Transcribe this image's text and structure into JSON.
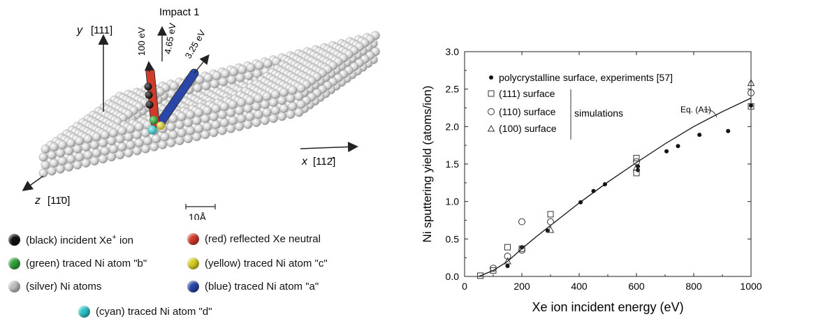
{
  "panel_left": {
    "title": "Impact 1",
    "axis_y_label": "y",
    "axis_y_dir": "[111]",
    "axis_x_label": "x",
    "axis_x_dir": "[112̄]",
    "axis_z_label": "z",
    "axis_z_dir": "[11̄0]",
    "scale_label": "10Å",
    "traj_labels": [
      "100 eV",
      "4.65 eV",
      "3.25 eV"
    ],
    "legend": [
      {
        "color": "#111111",
        "text": "(black) incident Xe",
        "sup": "+",
        "tail": " ion"
      },
      {
        "color": "#d23a2a",
        "text": "(red) reflected Xe neutral"
      },
      {
        "color": "#2fa23a",
        "text": "(green) traced Ni atom \"b\""
      },
      {
        "color": "#d7cf25",
        "text": "(yellow) traced Ni atom \"c\""
      },
      {
        "color": "#bdbdbd",
        "text": "(silver) Ni atoms"
      },
      {
        "color": "#2a46a8",
        "text": "(blue) traced Ni atom \"a\""
      },
      {
        "color": "#2cc3c9",
        "text": "(cyan) traced Ni atom \"d\""
      }
    ]
  },
  "chart_data": {
    "type": "scatter",
    "xlabel": "Xe ion incident energy (eV)",
    "ylabel": "Ni sputtering yield (atoms/ion)",
    "xlim": [
      0,
      1000
    ],
    "ylim": [
      0,
      3.0
    ],
    "xticks": [
      0,
      200,
      400,
      600,
      800,
      1000
    ],
    "yticks": [
      0.0,
      0.5,
      1.0,
      1.5,
      2.0,
      2.5,
      3.0
    ],
    "xtick_labels": [
      "0",
      "200",
      "400",
      "600",
      "800",
      "1000"
    ],
    "ytick_labels": [
      "0.0",
      "0.5",
      "1.0",
      "1.5",
      "2.0",
      "2.5",
      "3.0"
    ],
    "legend_position": "top-left",
    "bracket_label": "simulations",
    "curve_label": "Eq. (A1)",
    "series": [
      {
        "name": "polycrystalline surface, experiments [57]",
        "marker": "filled-circle",
        "x": [
          150,
          200,
          290,
          405,
          450,
          490,
          605,
          605,
          705,
          745,
          820,
          920,
          1000
        ],
        "y": [
          0.14,
          0.39,
          0.61,
          0.99,
          1.14,
          1.23,
          1.42,
          1.47,
          1.67,
          1.74,
          1.89,
          1.94,
          2.28
        ]
      },
      {
        "name": "(111) surface",
        "marker": "open-square",
        "x": [
          55,
          100,
          150,
          200,
          300,
          600,
          600,
          1000
        ],
        "y": [
          0.01,
          0.08,
          0.39,
          0.37,
          0.83,
          1.58,
          1.38,
          2.27
        ]
      },
      {
        "name": "(110) surface",
        "marker": "open-circle",
        "x": [
          100,
          150,
          200,
          200,
          300,
          600,
          1000
        ],
        "y": [
          0.11,
          0.27,
          0.73,
          0.35,
          0.73,
          1.53,
          2.45
        ]
      },
      {
        "name": "(100) surface",
        "marker": "open-triangle",
        "x": [
          150,
          300,
          600,
          1000
        ],
        "y": [
          0.2,
          0.62,
          1.45,
          2.58
        ]
      },
      {
        "name": "Eq. (A1)",
        "marker": "line",
        "x": [
          50,
          100,
          150,
          200,
          250,
          300,
          400,
          500,
          600,
          700,
          800,
          900,
          1000
        ],
        "y": [
          0.0,
          0.08,
          0.2,
          0.37,
          0.53,
          0.68,
          0.98,
          1.26,
          1.52,
          1.77,
          2.0,
          2.2,
          2.38
        ]
      }
    ]
  }
}
